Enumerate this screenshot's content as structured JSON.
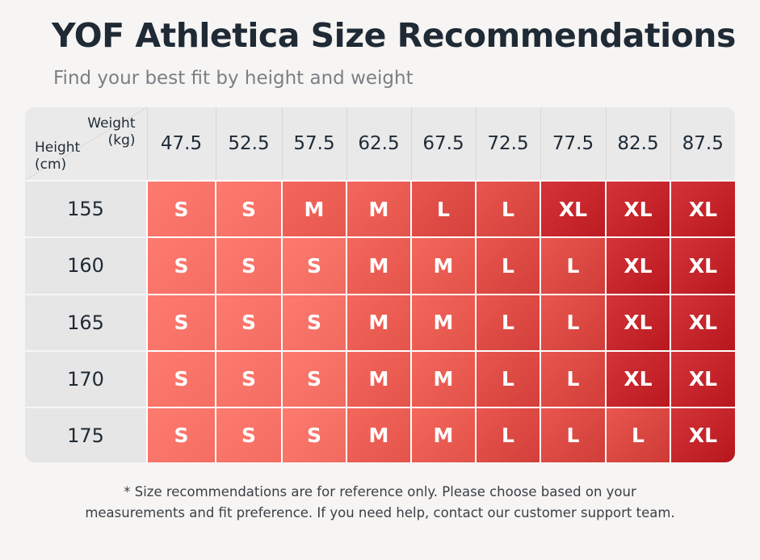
{
  "title": "YOF Athletica Size Recommendations",
  "subtitle": "Find your best fit by height and weight",
  "corner": {
    "weight_label": "Weight",
    "weight_unit": "(kg)",
    "height_label": "Height",
    "height_unit": "(cm)"
  },
  "footnote": {
    "line1": "* Size recommendations are for reference only. Please choose based on your",
    "line2": "measurements and fit preference. If you need help, contact our customer support team."
  },
  "colors": {
    "S": "#f46e64",
    "M": "#ea5b52",
    "L": "#de4a45",
    "XL": "#c9282f"
  },
  "chart_data": {
    "type": "table",
    "title": "YOF Athletica Size Recommendations",
    "subtitle": "Find your best fit by height and weight",
    "xlabel": "Weight (kg)",
    "ylabel": "Height (cm)",
    "columns": [
      "47.5",
      "52.5",
      "57.5",
      "62.5",
      "67.5",
      "72.5",
      "77.5",
      "82.5",
      "87.5"
    ],
    "rows": [
      "155",
      "160",
      "165",
      "170",
      "175"
    ],
    "values": [
      [
        "S",
        "S",
        "M",
        "M",
        "L",
        "L",
        "XL",
        "XL",
        "XL"
      ],
      [
        "S",
        "S",
        "S",
        "M",
        "M",
        "L",
        "L",
        "XL",
        "XL"
      ],
      [
        "S",
        "S",
        "S",
        "M",
        "M",
        "L",
        "L",
        "XL",
        "XL"
      ],
      [
        "S",
        "S",
        "S",
        "M",
        "M",
        "L",
        "L",
        "XL",
        "XL"
      ],
      [
        "S",
        "S",
        "S",
        "M",
        "M",
        "L",
        "L",
        "L",
        "XL"
      ]
    ]
  }
}
